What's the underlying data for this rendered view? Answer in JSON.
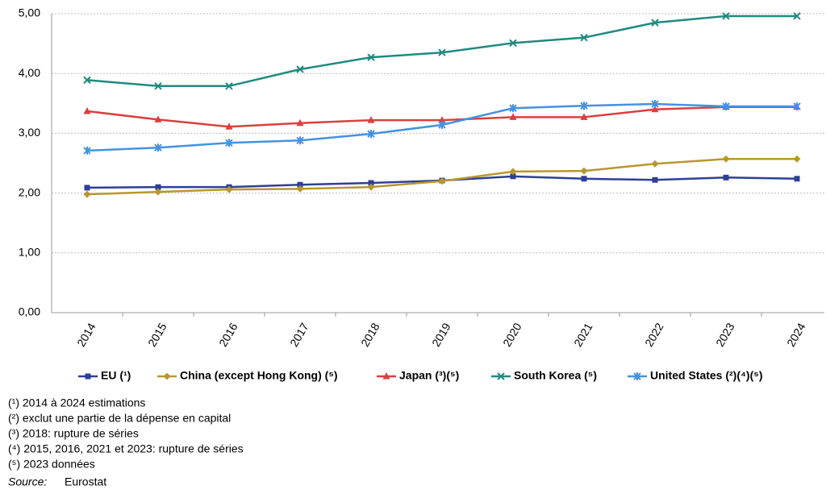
{
  "chart_data": {
    "type": "line",
    "categories": [
      "2014",
      "2015",
      "2016",
      "2017",
      "2018",
      "2019",
      "2020",
      "2021",
      "2022",
      "2023",
      "2024"
    ],
    "series": [
      {
        "name": "EU (¹)",
        "color": "#2e3f97",
        "marker": "square",
        "values": [
          2.09,
          2.1,
          2.1,
          2.14,
          2.17,
          2.21,
          2.28,
          2.24,
          2.22,
          2.26,
          2.24
        ]
      },
      {
        "name": "China (except Hong Kong) (⁵)",
        "color": "#b8972f",
        "marker": "diamond",
        "values": [
          1.98,
          2.02,
          2.06,
          2.07,
          2.1,
          2.2,
          2.36,
          2.37,
          2.49,
          2.57,
          2.57
        ]
      },
      {
        "name": "Japan (³)(⁵)",
        "color": "#db3f3f",
        "marker": "triangle",
        "values": [
          3.37,
          3.23,
          3.11,
          3.17,
          3.22,
          3.22,
          3.27,
          3.27,
          3.4,
          3.44,
          3.44
        ]
      },
      {
        "name": "South Korea (⁵)",
        "color": "#1f8a80",
        "marker": "cross",
        "values": [
          3.89,
          3.79,
          3.79,
          4.07,
          4.27,
          4.35,
          4.51,
          4.6,
          4.85,
          4.96,
          4.96
        ]
      },
      {
        "name": "United States (²)(⁴)(⁵)",
        "color": "#4592e0",
        "marker": "star",
        "values": [
          2.71,
          2.76,
          2.84,
          2.88,
          2.99,
          3.14,
          3.42,
          3.46,
          3.49,
          3.45,
          3.45
        ]
      }
    ],
    "ylim": [
      0,
      5
    ],
    "yticks": [
      {
        "value": 0,
        "label": "0,00"
      },
      {
        "value": 1,
        "label": "1,00"
      },
      {
        "value": 2,
        "label": "2,00"
      },
      {
        "value": 3,
        "label": "3,00"
      },
      {
        "value": 4,
        "label": "4,00"
      },
      {
        "value": 5,
        "label": "5,00"
      }
    ],
    "grid": true,
    "footnotes": [
      "(¹) 2014 à 2024 estimations",
      "(²) exclut une partie de la dépense en capital",
      "(³) 2018: rupture de séries",
      "(⁴) 2015,  2016, 2021 et 2023: rupture de séries",
      "(⁵) 2023 données"
    ],
    "source_label": "Source:",
    "source": "Eurostat"
  }
}
